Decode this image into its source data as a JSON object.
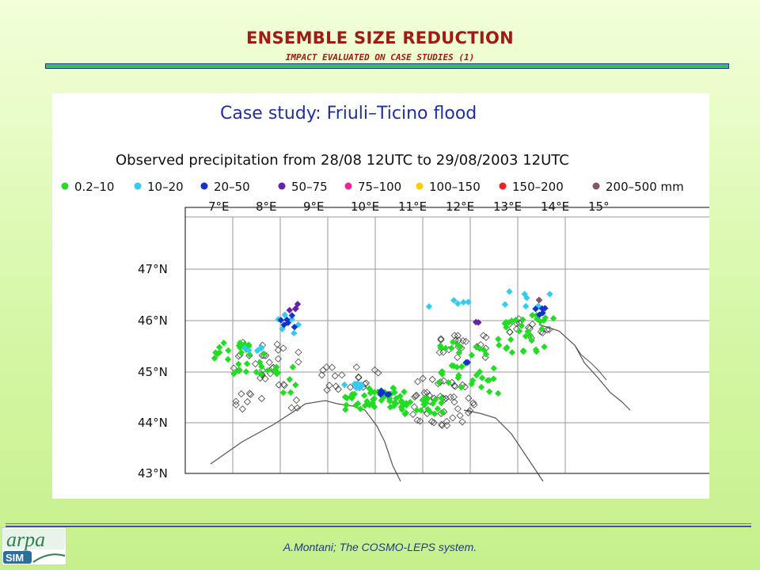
{
  "slide": {
    "title": "ENSEMBLE SIZE REDUCTION",
    "subtitle": "IMPACT EVALUATED ON CASE STUDIES (1)",
    "footer": "A.Montani; The COSMO-LEPS system.",
    "logo_text": "arpa",
    "logo_sub": "SIM"
  },
  "figure": {
    "heading": "Case study:  Friuli–Ticino flood",
    "subheading": "Observed precipitation from 28/08 12UTC to 29/08/2003 12UTC",
    "legend": [
      {
        "label": "0.2–10",
        "color": "#22dd22"
      },
      {
        "label": "10–20",
        "color": "#33ccee"
      },
      {
        "label": "20–50",
        "color": "#1133cc"
      },
      {
        "label": "50–75",
        "color": "#6622aa"
      },
      {
        "label": "75–100",
        "color": "#ee2299"
      },
      {
        "label": "100–150",
        "color": "#ffcc00"
      },
      {
        "label": "150–200",
        "color": "#ee2222"
      },
      {
        "label": "200–500 mm",
        "color": "#885566"
      }
    ],
    "lon_labels": [
      "7°E",
      "8°E",
      "9°E",
      "10°E",
      "11°E",
      "12°E",
      "13°E",
      "14°E",
      "15°"
    ],
    "lat_labels": [
      "47°N",
      "46°N",
      "45°N",
      "44°N",
      "43°N"
    ]
  }
}
